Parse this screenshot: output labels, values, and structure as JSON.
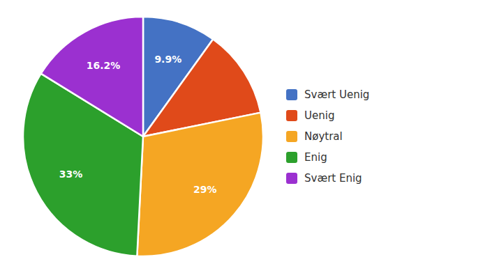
{
  "chart_data": {
    "type": "pie",
    "categories": [
      "Svært Uenig",
      "Uenig",
      "Nøytral",
      "Enig",
      "Svært Enig"
    ],
    "values": [
      9.9,
      11.9,
      29.0,
      33.0,
      16.2
    ],
    "value_labels": [
      "9.9%",
      null,
      "29%",
      "33%",
      "16.2%"
    ],
    "colors": [
      "#4472C4",
      "#E04A1A",
      "#F5A623",
      "#2CA02C",
      "#9B30D0"
    ],
    "data_labels": true,
    "legend": "right"
  }
}
